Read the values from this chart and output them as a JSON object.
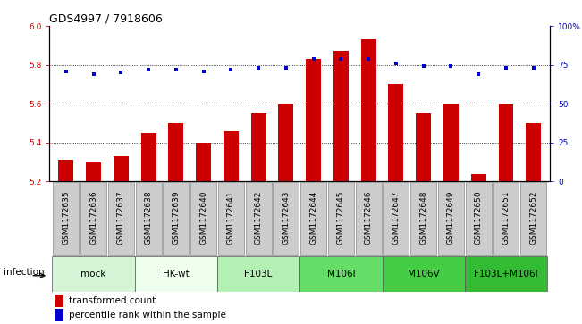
{
  "title": "GDS4997 / 7918606",
  "samples": [
    "GSM1172635",
    "GSM1172636",
    "GSM1172637",
    "GSM1172638",
    "GSM1172639",
    "GSM1172640",
    "GSM1172641",
    "GSM1172642",
    "GSM1172643",
    "GSM1172644",
    "GSM1172645",
    "GSM1172646",
    "GSM1172647",
    "GSM1172648",
    "GSM1172649",
    "GSM1172650",
    "GSM1172651",
    "GSM1172652"
  ],
  "transformed_count": [
    5.31,
    5.3,
    5.33,
    5.45,
    5.5,
    5.4,
    5.46,
    5.55,
    5.6,
    5.83,
    5.87,
    5.93,
    5.7,
    5.55,
    5.6,
    5.24,
    5.6,
    5.5
  ],
  "percentile_rank": [
    71,
    69,
    70,
    72,
    72,
    71,
    72,
    73,
    73,
    79,
    79,
    79,
    76,
    74,
    74,
    69,
    73,
    73
  ],
  "groups": [
    {
      "label": "mock",
      "start": 0,
      "end": 3,
      "color": "#d6f5d6"
    },
    {
      "label": "HK-wt",
      "start": 3,
      "end": 6,
      "color": "#eeffee"
    },
    {
      "label": "F103L",
      "start": 6,
      "end": 9,
      "color": "#b3f0b3"
    },
    {
      "label": "M106I",
      "start": 9,
      "end": 12,
      "color": "#66dd66"
    },
    {
      "label": "M106V",
      "start": 12,
      "end": 15,
      "color": "#44cc44"
    },
    {
      "label": "F103L+M106I",
      "start": 15,
      "end": 18,
      "color": "#33bb33"
    }
  ],
  "ylim_left": [
    5.2,
    6.0
  ],
  "ylim_right": [
    0,
    100
  ],
  "yticks_left": [
    5.2,
    5.4,
    5.6,
    5.8,
    6.0
  ],
  "yticks_right": [
    0,
    25,
    50,
    75,
    100
  ],
  "bar_color": "#cc0000",
  "dot_color": "#0000cc",
  "grid_values": [
    5.4,
    5.6,
    5.8
  ],
  "legend_bar_label": "transformed count",
  "legend_dot_label": "percentile rank within the sample",
  "infection_label": "infection",
  "bar_width": 0.55,
  "title_fontsize": 9,
  "tick_fontsize": 6.5,
  "group_label_fontsize": 7.5,
  "legend_fontsize": 7.5,
  "sample_box_color": "#cccccc",
  "sample_box_edge": "#888888"
}
